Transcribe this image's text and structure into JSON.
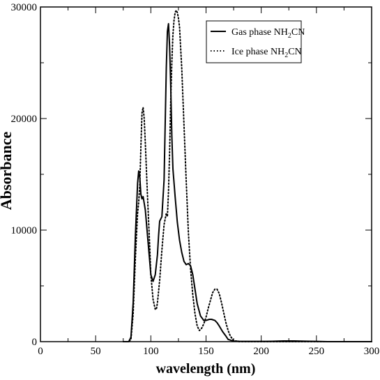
{
  "chart_data": {
    "type": "line",
    "title": "",
    "xlabel": "wavelength (nm)",
    "ylabel": "Absorbance",
    "xlim": [
      0,
      300
    ],
    "ylim": [
      0,
      30000
    ],
    "xticks": [
      0,
      50,
      100,
      150,
      200,
      250,
      300
    ],
    "xtick_labels": [
      "0",
      "50",
      "100",
      "150",
      "200",
      "250",
      "300"
    ],
    "yticks": [
      0,
      10000,
      20000,
      30000
    ],
    "ytick_labels": [
      "0",
      "10000",
      "20000",
      "30000"
    ],
    "grid": false,
    "legend_position": "top-right",
    "series": [
      {
        "name": "Gas phase NH2CN",
        "legend": {
          "main": "Gas phase NH",
          "sub": "2",
          "tail": "CN"
        },
        "style": "solid",
        "color": "#000000",
        "x": [
          75,
          80,
          82,
          84,
          86,
          88,
          89,
          90,
          91,
          92,
          93,
          95,
          97,
          99,
          100,
          102,
          104,
          106,
          107,
          108,
          110,
          112,
          113,
          114,
          115,
          116,
          117,
          118,
          119,
          120,
          122,
          124,
          126,
          128,
          130,
          132,
          134,
          136,
          138,
          140,
          142,
          145,
          148,
          150,
          153,
          155,
          158,
          160,
          162,
          165,
          168,
          170,
          175,
          180,
          190,
          200,
          210,
          220,
          230,
          240,
          250,
          260,
          280,
          300
        ],
        "y": [
          0,
          0,
          400,
          3500,
          9500,
          14200,
          15300,
          14700,
          13200,
          12800,
          13000,
          11800,
          9500,
          7200,
          6000,
          5400,
          6000,
          7800,
          9500,
          10800,
          11200,
          14500,
          19500,
          24500,
          27800,
          28500,
          26500,
          23000,
          18500,
          15500,
          13000,
          10700,
          9100,
          8000,
          7200,
          6900,
          7000,
          6800,
          6000,
          4700,
          3400,
          2300,
          1900,
          1900,
          2000,
          2000,
          1900,
          1700,
          1400,
          900,
          500,
          200,
          50,
          30,
          20,
          20,
          30,
          60,
          60,
          40,
          20,
          0,
          0,
          0
        ]
      },
      {
        "name": "Ice phase NH2CN",
        "legend": {
          "main": "Ice phase NH",
          "sub": "2",
          "tail": "CN"
        },
        "style": "dotted",
        "color": "#000000",
        "x": [
          75,
          80,
          82,
          84,
          86,
          88,
          89,
          90,
          91,
          92,
          93,
          94,
          95,
          97,
          99,
          100,
          102,
          104,
          105,
          106,
          108,
          110,
          112,
          114,
          115,
          116,
          117,
          118,
          119,
          120,
          121,
          122,
          123,
          124,
          125,
          126,
          128,
          130,
          132,
          134,
          136,
          138,
          140,
          142,
          144,
          146,
          148,
          150,
          152,
          154,
          156,
          158,
          160,
          162,
          164,
          166,
          168,
          170,
          172,
          175,
          180,
          185,
          190,
          200,
          220,
          250,
          300
        ],
        "y": [
          0,
          0,
          200,
          2500,
          7500,
          11500,
          12500,
          14000,
          17500,
          20500,
          21000,
          20000,
          17800,
          13000,
          8500,
          6000,
          3800,
          2900,
          2900,
          3500,
          5500,
          8200,
          10500,
          11500,
          11200,
          13500,
          17000,
          21500,
          25000,
          27500,
          28800,
          29500,
          29700,
          29500,
          29000,
          28200,
          24500,
          19500,
          14500,
          9800,
          6500,
          4200,
          2500,
          1400,
          1000,
          1200,
          1600,
          2200,
          3000,
          3700,
          4400,
          4700,
          4700,
          4300,
          3500,
          2600,
          1700,
          1000,
          500,
          100,
          0,
          0,
          0,
          0,
          0,
          0,
          0
        ]
      }
    ]
  }
}
